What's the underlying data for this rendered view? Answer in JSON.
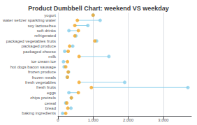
{
  "chart_data": {
    "type": "dumbbell",
    "title": "Product Dumbbell Chart: weekend VS weekday",
    "categories": [
      "yogurt",
      "water seltzer sparkling water",
      "soy lactosefree",
      "soft drinks",
      "refrigerated",
      "packaged vegetables fruits",
      "packaged produce",
      "packaged cheese",
      "milk",
      "ice cream ice",
      "hot dogs bacon sausage",
      "frozen produce",
      "frozen meals",
      "fresh vegetables",
      "fresh fruits",
      "eggs",
      "chips pretzels",
      "cereal",
      "bread",
      "baking ingredients"
    ],
    "series": [
      {
        "color": "#f5a623",
        "values": [
          1000,
          550,
          480,
          580,
          480,
          1050,
          330,
          290,
          600,
          270,
          220,
          290,
          270,
          600,
          950,
          580,
          380,
          250,
          280,
          220
        ]
      },
      {
        "color": "#87ceeb",
        "values": [
          1000,
          1200,
          850,
          310,
          510,
          1100,
          420,
          190,
          1450,
          155,
          175,
          300,
          260,
          1900,
          3700,
          310,
          380,
          220,
          370,
          130
        ]
      }
    ],
    "color": "#87ceeb",
    "xlim": [
      0,
      3800
    ],
    "xticks": [
      0,
      1000,
      2000,
      3000
    ],
    "grid": true
  }
}
